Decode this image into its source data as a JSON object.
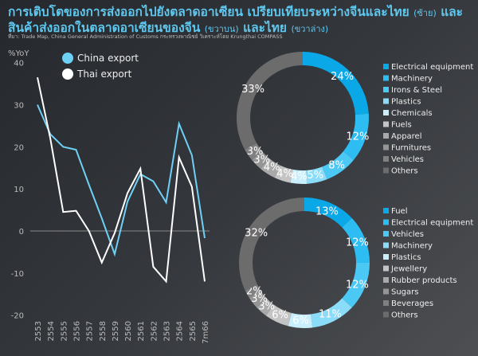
{
  "header": {
    "title_a": "การเติบโตของการส่งออกไปยังตลาดอาเซียน เปรียบเทียบระหว่างจีนและไทย",
    "title_a_note": "(ซ้าย)",
    "title_b": "และ",
    "title_c": "สินค้าส่งออกในตลาดอาเซียนของจีน",
    "title_c_note": "(ขวาบน)",
    "title_d": "และไทย",
    "title_d_note": "(ขวาล่าง)",
    "source": "ที่มา: Trade Map, China General Administration of Customs กระทรวงพาณิชย์ วิเคราะห์โดย Krungthai COMPASS"
  },
  "chart_data": [
    {
      "type": "line",
      "ylabel": "%YoY",
      "ylim": [
        -20,
        40
      ],
      "yticks": [
        40,
        30,
        20,
        10,
        0,
        -10,
        -20
      ],
      "categories": [
        "2553",
        "2554",
        "2555",
        "2556",
        "2557",
        "2558",
        "2559",
        "2560",
        "2561",
        "2562",
        "2563",
        "2564",
        "2565",
        "7m66"
      ],
      "series": [
        {
          "name": "China export",
          "color": "#6fd0f5",
          "values": [
            30,
            23,
            20,
            19.3,
            11,
            3,
            -5.5,
            7,
            13.5,
            11.8,
            6.8,
            25.5,
            18,
            -1.7
          ]
        },
        {
          "name": "Thai export",
          "color": "#ffffff",
          "values": [
            36.5,
            22,
            4.5,
            4.8,
            0,
            -7.5,
            -0.5,
            9,
            14.8,
            -8.5,
            -12,
            17.5,
            10.5,
            -12
          ]
        }
      ],
      "legend": "top-left"
    },
    {
      "type": "pie",
      "title": "China",
      "labels": [
        "Electrical equipment",
        "Machinery",
        "Irons & Steel",
        "Plastics",
        "Chemicals",
        "Fuels",
        "Apparel",
        "Furnitures",
        "Vehicles",
        "Others"
      ],
      "values": [
        24,
        12,
        8,
        5,
        4,
        4,
        4,
        3,
        3,
        33
      ],
      "colors": [
        "#0aa8e6",
        "#2dbdf2",
        "#4cc8f4",
        "#8adcf8",
        "#c9effc",
        "#c4c4c4",
        "#a9a9a9",
        "#959595",
        "#808080",
        "#6c6c6c"
      ]
    },
    {
      "type": "pie",
      "title": "Thailand",
      "labels": [
        "Fuel",
        "Electrical equipment",
        "Vehicles",
        "Machinery",
        "Plastics",
        "Jewellery",
        "Rubber products",
        "Sugars",
        "Beverages",
        "Others"
      ],
      "values": [
        13,
        12,
        12,
        11,
        6,
        6,
        3,
        3,
        2,
        32
      ],
      "colors": [
        "#0aa8e6",
        "#2dbdf2",
        "#4cc8f4",
        "#8adcf8",
        "#c9effc",
        "#c4c4c4",
        "#a9a9a9",
        "#959595",
        "#808080",
        "#6c6c6c"
      ]
    }
  ]
}
